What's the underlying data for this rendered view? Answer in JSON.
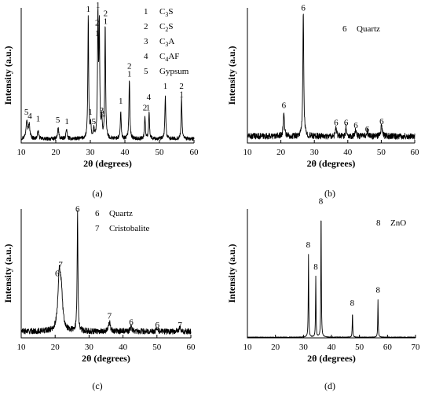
{
  "figure": {
    "panels": [
      {
        "key": "a",
        "caption": "(a)"
      },
      {
        "key": "b",
        "caption": "(b)"
      },
      {
        "key": "c",
        "caption": "(c)"
      },
      {
        "key": "d",
        "caption": "(d)"
      }
    ]
  },
  "chart_data": [
    {
      "type": "line",
      "panel": "(a)",
      "xlabel": "2θ (degrees)",
      "ylabel": "Intensity (a.u.)",
      "xlim": [
        10,
        60
      ],
      "xticks": [
        10,
        20,
        30,
        40,
        50,
        60
      ],
      "ylim": [
        0,
        100
      ],
      "legend_position": "top-right",
      "legend": [
        {
          "id": "1",
          "label": "C3S",
          "main": "C",
          "sub": "3",
          "rest": "S"
        },
        {
          "id": "2",
          "label": "C2S",
          "main": "C",
          "sub": "2",
          "rest": "S"
        },
        {
          "id": "3",
          "label": "C3A",
          "main": "C",
          "sub": "3",
          "rest": "A"
        },
        {
          "id": "4",
          "label": "C4AF",
          "main": "C",
          "sub": "4",
          "rest": "AF"
        },
        {
          "id": "5",
          "label": "Gypsum",
          "main": "Gypsum",
          "sub": "",
          "rest": ""
        }
      ],
      "peaks": [
        {
          "x": 11.6,
          "y": 14,
          "w": 0.25
        },
        {
          "x": 12.3,
          "y": 10,
          "w": 0.25
        },
        {
          "x": 14.9,
          "y": 6,
          "w": 0.2
        },
        {
          "x": 20.7,
          "y": 8,
          "w": 0.2
        },
        {
          "x": 23.1,
          "y": 7,
          "w": 0.2
        },
        {
          "x": 29.4,
          "y": 90,
          "w": 0.14
        },
        {
          "x": 30.1,
          "y": 10,
          "w": 0.15
        },
        {
          "x": 31.0,
          "y": 7,
          "w": 0.15
        },
        {
          "x": 32.2,
          "y": 90,
          "w": 0.14
        },
        {
          "x": 32.6,
          "y": 82,
          "w": 0.14
        },
        {
          "x": 33.3,
          "y": 13,
          "w": 0.15
        },
        {
          "x": 34.3,
          "y": 85,
          "w": 0.14
        },
        {
          "x": 38.8,
          "y": 20,
          "w": 0.15
        },
        {
          "x": 41.3,
          "y": 45,
          "w": 0.15
        },
        {
          "x": 45.8,
          "y": 17,
          "w": 0.15
        },
        {
          "x": 47.0,
          "y": 20,
          "w": 0.15
        },
        {
          "x": 51.7,
          "y": 32,
          "w": 0.15
        },
        {
          "x": 56.4,
          "y": 30,
          "w": 0.15
        }
      ],
      "background": 3,
      "peak_labels": [
        {
          "x": 11.5,
          "y": 21,
          "label": "5"
        },
        {
          "x": 12.5,
          "y": 18,
          "label": "4"
        },
        {
          "x": 14.9,
          "y": 16,
          "label": "1"
        },
        {
          "x": 20.6,
          "y": 15,
          "label": "5"
        },
        {
          "x": 23.2,
          "y": 14,
          "label": "1"
        },
        {
          "x": 29.4,
          "y": 97,
          "label": "1"
        },
        {
          "x": 30.0,
          "y": 21,
          "label": "1"
        },
        {
          "x": 31.0,
          "y": 14,
          "label": "5"
        },
        {
          "x": 32.2,
          "y": 100,
          "label": "1"
        },
        {
          "x": 32.0,
          "y": 87,
          "label": "2"
        },
        {
          "x": 32.0,
          "y": 79,
          "label": "1"
        },
        {
          "x": 33.3,
          "y": 22,
          "label": "3"
        },
        {
          "x": 33.7,
          "y": 19,
          "label": "4"
        },
        {
          "x": 34.4,
          "y": 94,
          "label": "2"
        },
        {
          "x": 34.4,
          "y": 88,
          "label": "1"
        },
        {
          "x": 38.8,
          "y": 29,
          "label": "1"
        },
        {
          "x": 41.3,
          "y": 55,
          "label": "2"
        },
        {
          "x": 41.3,
          "y": 49,
          "label": "1"
        },
        {
          "x": 45.8,
          "y": 24,
          "label": "2"
        },
        {
          "x": 46.7,
          "y": 24,
          "label": "1"
        },
        {
          "x": 46.9,
          "y": 32,
          "label": "4"
        },
        {
          "x": 51.7,
          "y": 40,
          "label": "1"
        },
        {
          "x": 56.4,
          "y": 40,
          "label": "2"
        },
        {
          "x": 56.4,
          "y": 34,
          "label": "1"
        }
      ]
    },
    {
      "type": "line",
      "panel": "(b)",
      "xlabel": "2θ (degrees)",
      "ylabel": "Intensity (a.u.)",
      "xlim": [
        10,
        60
      ],
      "xticks": [
        10,
        20,
        30,
        40,
        50,
        60
      ],
      "ylim": [
        0,
        100
      ],
      "legend_position": "top-right",
      "legend": [
        {
          "id": "6",
          "label": "Quartz",
          "main": "Quartz",
          "sub": "",
          "rest": ""
        }
      ],
      "peaks": [
        {
          "x": 20.9,
          "y": 17,
          "w": 0.22
        },
        {
          "x": 26.7,
          "y": 92,
          "w": 0.16
        },
        {
          "x": 36.5,
          "y": 6,
          "w": 0.2
        },
        {
          "x": 39.5,
          "y": 7,
          "w": 0.2
        },
        {
          "x": 42.4,
          "y": 5,
          "w": 0.2
        },
        {
          "x": 45.8,
          "y": 4,
          "w": 0.2
        },
        {
          "x": 50.1,
          "y": 9,
          "w": 0.2
        }
      ],
      "background": 5,
      "peak_labels": [
        {
          "x": 20.9,
          "y": 26,
          "label": "6"
        },
        {
          "x": 26.7,
          "y": 98,
          "label": "6"
        },
        {
          "x": 36.5,
          "y": 13,
          "label": "6"
        },
        {
          "x": 39.5,
          "y": 13,
          "label": "6"
        },
        {
          "x": 42.4,
          "y": 11,
          "label": "6"
        },
        {
          "x": 45.8,
          "y": 8,
          "label": "6"
        },
        {
          "x": 50.1,
          "y": 14,
          "label": "6"
        }
      ]
    },
    {
      "type": "line",
      "panel": "(c)",
      "xlabel": "2θ (degrees)",
      "ylabel": "Intensity (a.u.)",
      "xlim": [
        10,
        60
      ],
      "xticks": [
        10,
        20,
        30,
        40,
        50,
        60
      ],
      "ylim": [
        0,
        100
      ],
      "legend_position": "top-left",
      "legend": [
        {
          "id": "6",
          "label": "Quartz",
          "main": "Quartz",
          "sub": "",
          "rest": ""
        },
        {
          "id": "7",
          "label": "Cristobalite",
          "main": "Cristobalite",
          "sub": "",
          "rest": ""
        }
      ],
      "peaks": [
        {
          "x": 21.2,
          "y": 40,
          "w": 0.45
        },
        {
          "x": 21.8,
          "y": 25,
          "w": 0.5
        },
        {
          "x": 26.6,
          "y": 92,
          "w": 0.14
        },
        {
          "x": 36.0,
          "y": 7,
          "w": 0.3
        },
        {
          "x": 42.4,
          "y": 4,
          "w": 0.25
        },
        {
          "x": 50.1,
          "y": 3,
          "w": 0.25
        },
        {
          "x": 56.8,
          "y": 3,
          "w": 0.25
        }
      ],
      "background": 5,
      "peak_labels": [
        {
          "x": 20.6,
          "y": 48,
          "label": "6"
        },
        {
          "x": 21.6,
          "y": 55,
          "label": "7"
        },
        {
          "x": 26.6,
          "y": 98,
          "label": "6"
        },
        {
          "x": 36.0,
          "y": 15,
          "label": "7"
        },
        {
          "x": 42.4,
          "y": 10,
          "label": "6"
        },
        {
          "x": 50.1,
          "y": 8,
          "label": "6"
        },
        {
          "x": 56.8,
          "y": 8,
          "label": "7"
        }
      ]
    },
    {
      "type": "line",
      "panel": "(d)",
      "xlabel": "2θ (degrees)",
      "ylabel": "Intensity (a.u.)",
      "xlim": [
        10,
        70
      ],
      "xticks": [
        10,
        20,
        30,
        40,
        50,
        60,
        70
      ],
      "ylim": [
        0,
        100
      ],
      "legend_position": "top-right",
      "legend": [
        {
          "id": "8",
          "label": "ZnO",
          "main": "ZnO",
          "sub": "",
          "rest": ""
        }
      ],
      "peaks": [
        {
          "x": 31.8,
          "y": 64,
          "w": 0.1
        },
        {
          "x": 34.4,
          "y": 47,
          "w": 0.1
        },
        {
          "x": 36.3,
          "y": 100,
          "w": 0.1
        },
        {
          "x": 47.5,
          "y": 19,
          "w": 0.1
        },
        {
          "x": 56.6,
          "y": 29,
          "w": 0.1
        }
      ],
      "background": 0.5,
      "peak_labels": [
        {
          "x": 31.7,
          "y": 70,
          "label": "8"
        },
        {
          "x": 34.4,
          "y": 53,
          "label": "8"
        },
        {
          "x": 36.2,
          "y": 104,
          "label": "8"
        },
        {
          "x": 47.4,
          "y": 25,
          "label": "8"
        },
        {
          "x": 56.6,
          "y": 35,
          "label": "8"
        }
      ]
    }
  ]
}
